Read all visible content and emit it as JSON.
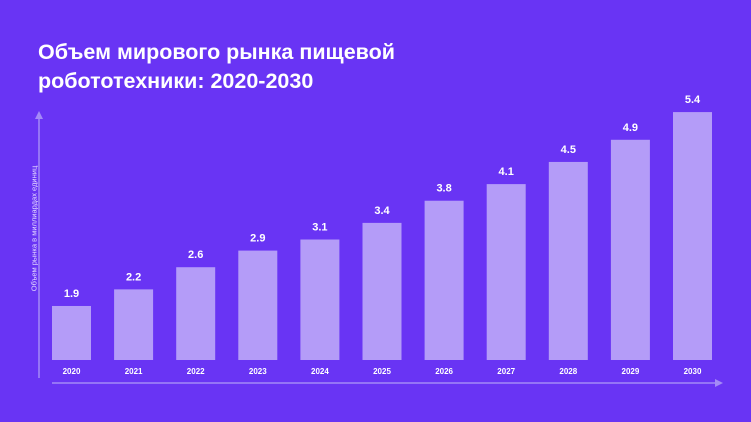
{
  "chart_data": {
    "type": "bar",
    "title": "Объем мирового рынка пищевой\nробототехники: 2020-2030",
    "ylabel": "Объем рынка в миллиардах единиц",
    "xlabel": "",
    "categories": [
      "2020",
      "2021",
      "2022",
      "2023",
      "2024",
      "2025",
      "2026",
      "2027",
      "2028",
      "2029",
      "2030"
    ],
    "values": [
      1.9,
      2.2,
      2.6,
      2.9,
      3.1,
      3.4,
      3.8,
      4.1,
      4.5,
      4.9,
      5.4
    ],
    "data_labels": [
      "1.9",
      "2.2",
      "2.6",
      "2.9",
      "3.1",
      "3.4",
      "3.8",
      "4.1",
      "4.5",
      "4.9",
      "5.4"
    ],
    "grid": false,
    "colors": {
      "background": "#6934f4",
      "bar": "#b49cf8",
      "axis": "#a48af6",
      "text": "#ffffff"
    }
  }
}
